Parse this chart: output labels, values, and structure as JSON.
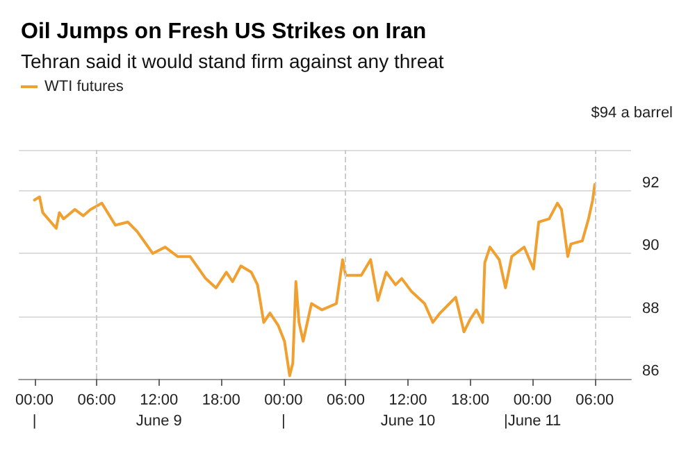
{
  "chart_data": {
    "type": "line",
    "title": "Oil Jumps on Fresh US Strikes on Iran",
    "subtitle": "Tehran said it would stand firm against any threat",
    "ylabel": "$94 a barrel",
    "x": [
      "--06-09T00:00",
      "--06-09T00:30",
      "--06-09T00:48",
      "--06-09T02:06",
      "--06-09T02:24",
      "--06-09T02:48",
      "--06-09T03:54",
      "--06-09T04:42",
      "--06-09T05:24",
      "--06-09T06:30",
      "--06-09T07:48",
      "--06-09T09:00",
      "--06-09T09:54",
      "--06-09T11:24",
      "--06-09T12:36",
      "--06-09T13:48",
      "--06-09T15:00",
      "--06-09T16:30",
      "--06-09T17:30",
      "--06-09T18:30",
      "--06-09T19:06",
      "--06-09T19:54",
      "--06-09T20:54",
      "--06-09T21:30",
      "--06-09T22:06",
      "--06-09T22:42",
      "--06-09T23:30",
      "--06-10T00:06",
      "--06-10T00:36",
      "--06-10T00:54",
      "--06-10T01:12",
      "--06-10T01:30",
      "--06-10T01:54",
      "--06-10T02:42",
      "--06-10T03:42",
      "--06-10T05:06",
      "--06-10T05:42",
      "--06-10T06:00",
      "--06-10T07:30",
      "--06-10T08:24",
      "--06-10T09:06",
      "--06-10T09:54",
      "--06-10T10:48",
      "--06-10T11:24",
      "--06-10T12:18",
      "--06-10T13:36",
      "--06-10T14:24",
      "--06-10T15:06",
      "--06-10T16:00",
      "--06-10T16:36",
      "--06-10T17:24",
      "--06-10T18:00",
      "--06-10T18:36",
      "--06-10T19:12",
      "--06-10T19:24",
      "--06-10T19:54",
      "--06-10T20:48",
      "--06-10T21:24",
      "--06-10T22:00",
      "--06-10T23:12",
      "--06-11T00:06",
      "--06-11T00:36",
      "--06-11T01:36",
      "--06-11T02:24",
      "--06-11T02:48",
      "--06-11T03:24",
      "--06-11T03:42",
      "--06-11T04:48",
      "--06-11T05:24",
      "--06-11T05:48",
      "--06-11T06:00"
    ],
    "series": [
      {
        "name": "WTI futures",
        "color": "#f0a030",
        "values": [
          91.7,
          91.8,
          91.3,
          90.8,
          91.3,
          91.1,
          91.4,
          91.2,
          91.4,
          91.6,
          90.9,
          91.0,
          90.7,
          90.0,
          90.2,
          89.9,
          89.9,
          89.2,
          88.9,
          89.4,
          89.1,
          89.6,
          89.4,
          89.0,
          87.8,
          88.1,
          87.7,
          87.2,
          86.1,
          86.5,
          89.1,
          87.8,
          87.2,
          88.4,
          88.2,
          88.4,
          89.8,
          89.3,
          89.3,
          89.8,
          88.5,
          89.4,
          89.0,
          89.2,
          88.8,
          88.4,
          87.8,
          88.1,
          88.4,
          88.6,
          87.5,
          87.9,
          88.2,
          87.8,
          89.7,
          90.2,
          89.8,
          88.9,
          89.9,
          90.2,
          89.5,
          91.0,
          91.1,
          91.6,
          91.4,
          89.9,
          90.3,
          90.4,
          91.1,
          91.7,
          92.2
        ]
      }
    ],
    "xlim": [
      "--06-08T22:30",
      "--06-11T09:30"
    ],
    "xticks": [
      {
        "value": "--06-09T00:00",
        "label": "00:00\n|"
      },
      {
        "value": "--06-09T06:00",
        "label": "06:00"
      },
      {
        "value": "--06-09T12:00",
        "label": "12:00\nJune 9"
      },
      {
        "value": "--06-09T18:00",
        "label": "18:00"
      },
      {
        "value": "--06-10T00:00",
        "label": "00:00\n|"
      },
      {
        "value": "--06-10T06:00",
        "label": "06:00"
      },
      {
        "value": "--06-10T12:00",
        "label": "12:00\nJune 10"
      },
      {
        "value": "--06-10T18:00",
        "label": "18:00"
      },
      {
        "value": "--06-11T00:00",
        "label": "00:00\n|June 11"
      },
      {
        "value": "--06-11T06:00",
        "label": "06:00"
      }
    ],
    "ylim": [
      86,
      93.3
    ],
    "yticks": [
      86,
      88,
      90,
      92
    ],
    "ref_lines": [
      {
        "axis": "x",
        "value": "--06-09T06:00",
        "label": null,
        "line_style": "dashed",
        "color": "#cccccc"
      },
      {
        "axis": "x",
        "value": "--06-10T06:00",
        "label": null,
        "line_style": "dashed",
        "color": "#cccccc"
      },
      {
        "axis": "x",
        "value": "--06-11T06:00",
        "label": null,
        "line_style": "dashed",
        "color": "#cccccc"
      }
    ],
    "grid": "y",
    "legend": "top left",
    "marker": "none",
    "line_style": "solid"
  }
}
